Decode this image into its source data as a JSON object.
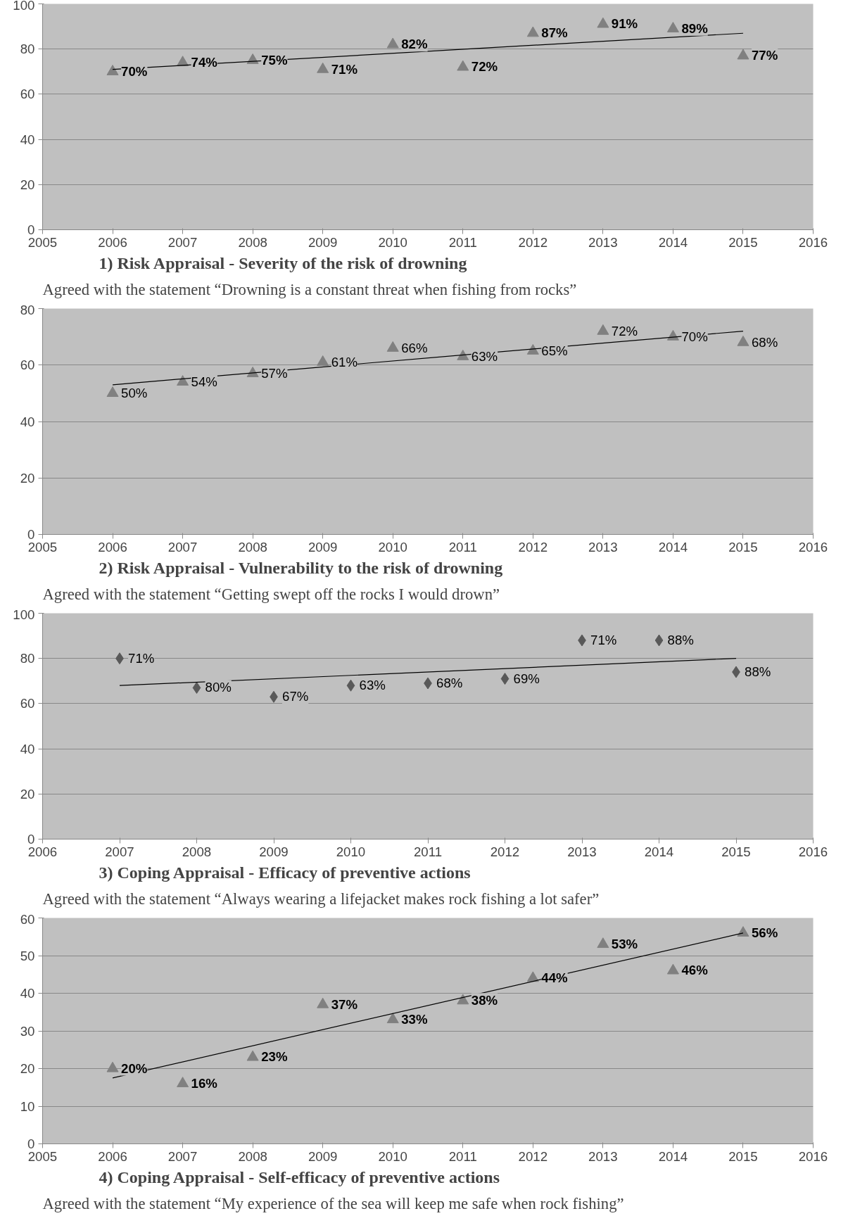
{
  "chart_data": [
    {
      "type": "scatter",
      "title": "1)  Risk Appraisal - Severity of the risk of drowning",
      "subtitle": "Agreed with the statement “Drowning is a constant threat when fishing from rocks”",
      "x": [
        2006,
        2007,
        2008,
        2009,
        2010,
        2011,
        2012,
        2013,
        2014,
        2015
      ],
      "xlim": [
        2005,
        2016
      ],
      "xticks": [
        2005,
        2006,
        2007,
        2008,
        2009,
        2010,
        2011,
        2012,
        2013,
        2014,
        2015,
        2016
      ],
      "ylim": [
        0,
        100
      ],
      "yticks": [
        0,
        20,
        40,
        60,
        80,
        100
      ],
      "grid": "y",
      "series": [
        {
          "color": "#808080",
          "marker": "triangle",
          "values": [
            70,
            74,
            75,
            71,
            82,
            72,
            87,
            91,
            89,
            77
          ],
          "value_labels": [
            "70%",
            "74%",
            "75%",
            "71%",
            "82%",
            "72%",
            "87%",
            "91%",
            "89%",
            "77%"
          ]
        },
        {
          "type": "line",
          "color": "#000000",
          "x": [
            2006,
            2015
          ],
          "values": [
            71,
            87
          ]
        }
      ]
    },
    {
      "type": "scatter",
      "title": "2)  Risk Appraisal - Vulnerability to the risk of drowning",
      "subtitle": "Agreed with the statement “Getting swept off the rocks I would drown”",
      "x": [
        2006,
        2007,
        2008,
        2009,
        2010,
        2011,
        2012,
        2013,
        2014,
        2015
      ],
      "xlim": [
        2005,
        2016
      ],
      "xticks": [
        2005,
        2006,
        2007,
        2008,
        2009,
        2010,
        2011,
        2012,
        2013,
        2014,
        2015,
        2016
      ],
      "ylim": [
        0,
        80
      ],
      "yticks": [
        0,
        20,
        40,
        60,
        80
      ],
      "grid": "y",
      "series": [
        {
          "color": "#808080",
          "marker": "triangle",
          "values": [
            50,
            54,
            57,
            61,
            66,
            63,
            65,
            72,
            70,
            68
          ],
          "value_labels": [
            "50%",
            "54%",
            "57%",
            "61%",
            "66%",
            "63%",
            "65%",
            "72%",
            "70%",
            "68%"
          ]
        },
        {
          "type": "line",
          "color": "#000000",
          "x": [
            2006,
            2015
          ],
          "values": [
            53,
            72
          ]
        }
      ]
    },
    {
      "type": "scatter",
      "title": "3)  Coping Appraisal - Efficacy of preventive actions",
      "subtitle": "Agreed with the statement “Always wearing a lifejacket makes rock fishing a lot safer”",
      "annotations": [
        {
          "text": "71%",
          "x": 2007,
          "y": 80
        },
        {
          "text": "80%",
          "x": 2008,
          "y": 67
        },
        {
          "text": "67%",
          "x": 2009,
          "y": 63
        },
        {
          "text": "63%",
          "x": 2010,
          "y": 68
        },
        {
          "text": "68%",
          "x": 2011,
          "y": 69
        },
        {
          "text": "69%",
          "x": 2012,
          "y": 71
        },
        {
          "text": "71%",
          "x": 2013,
          "y": 88
        },
        {
          "text": "88%",
          "x": 2014,
          "y": 88
        },
        {
          "text": "88%",
          "x": 2015,
          "y": 74
        }
      ],
      "x": [
        2007,
        2008,
        2009,
        2010,
        2011,
        2012,
        2013,
        2014,
        2015
      ],
      "xlim": [
        2006,
        2016
      ],
      "xticks": [
        2006,
        2007,
        2008,
        2009,
        2010,
        2011,
        2012,
        2013,
        2014,
        2015,
        2016
      ],
      "ylim": [
        0,
        100
      ],
      "yticks": [
        0,
        20,
        40,
        60,
        80,
        100
      ],
      "grid": "y",
      "series": [
        {
          "color": "#595959",
          "marker": "diamond",
          "values": [
            80,
            67,
            63,
            68,
            69,
            71,
            88,
            88,
            74
          ]
        },
        {
          "type": "line",
          "color": "#000000",
          "x": [
            2007,
            2015
          ],
          "values": [
            68,
            80
          ]
        }
      ]
    },
    {
      "type": "scatter",
      "title": "4)  Coping Appraisal - Self-efficacy of preventive actions",
      "subtitle": "Agreed with the statement “My experience of the sea will keep me safe when rock fishing”",
      "x": [
        2006,
        2007,
        2008,
        2009,
        2010,
        2011,
        2012,
        2013,
        2014,
        2015
      ],
      "xlim": [
        2005,
        2016
      ],
      "xticks": [
        2005,
        2006,
        2007,
        2008,
        2009,
        2010,
        2011,
        2012,
        2013,
        2014,
        2015,
        2016
      ],
      "ylim": [
        0,
        60
      ],
      "yticks": [
        0,
        10,
        20,
        30,
        40,
        50,
        60
      ],
      "grid": "y",
      "series": [
        {
          "color": "#808080",
          "marker": "triangle",
          "values": [
            20,
            16,
            23,
            37,
            33,
            38,
            44,
            53,
            46,
            56
          ],
          "value_labels": [
            "20%",
            "16%",
            "23%",
            "37%",
            "33%",
            "38%",
            "44%",
            "53%",
            "46%",
            "56%"
          ]
        },
        {
          "type": "line",
          "color": "#000000",
          "x": [
            2006,
            2015
          ],
          "values": [
            17.5,
            56
          ]
        }
      ]
    }
  ]
}
